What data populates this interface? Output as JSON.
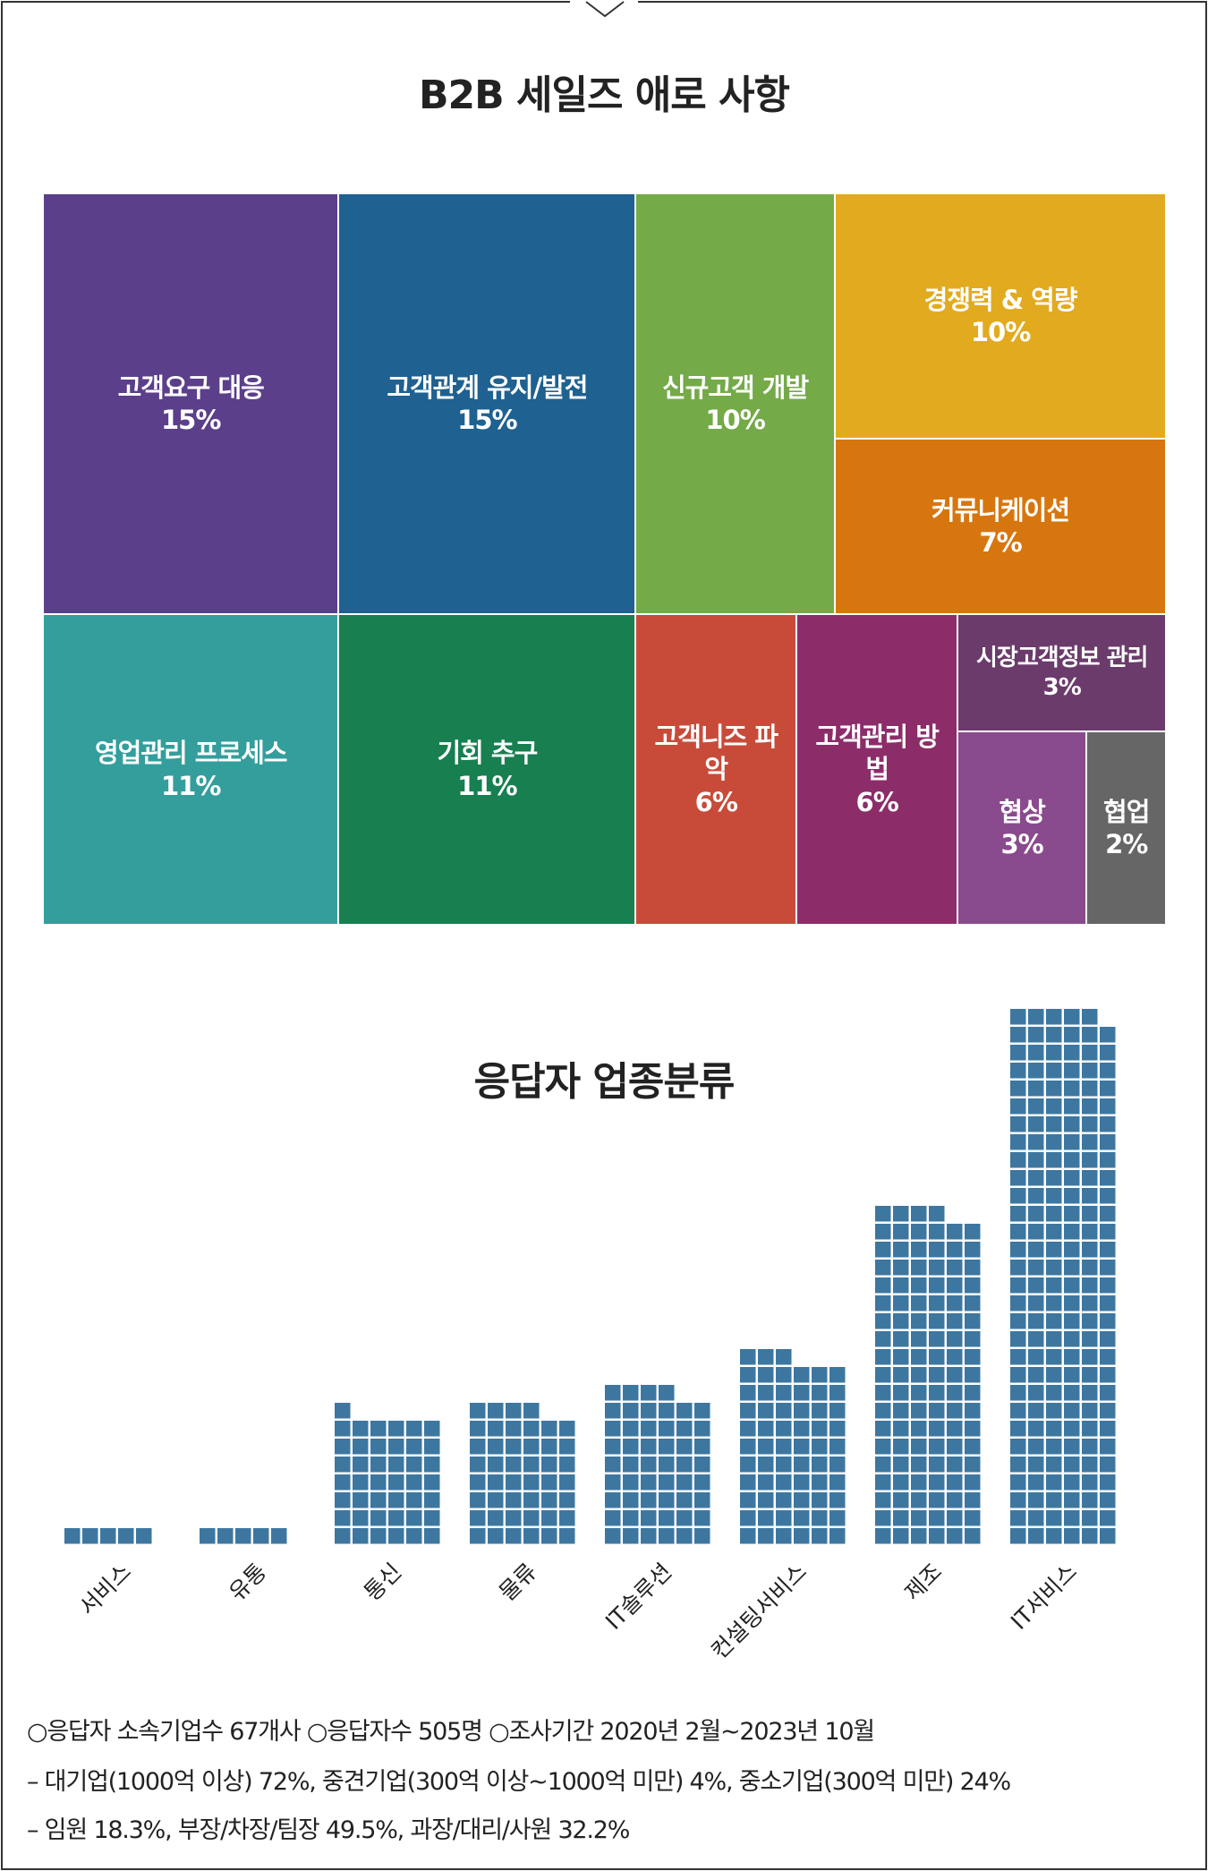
{
  "chart_data": [
    {
      "type": "treemap",
      "title": "B2B 세일즈 애로 사항",
      "categories": [
        "고객요구 대응",
        "고객관계 유지/발전",
        "신규고객 개발",
        "경쟁력 & 역량",
        "커뮤니케이션",
        "영업관리 프로세스",
        "기회 추구",
        "고객니즈 파악",
        "고객관리 방법",
        "시장고객정보 관리",
        "협상",
        "협업"
      ],
      "values": [
        15,
        15,
        10,
        10,
        7,
        11,
        11,
        6,
        6,
        3,
        3,
        2
      ],
      "value_labels": [
        "15%",
        "15%",
        "10%",
        "10%",
        "7%",
        "11%",
        "11%",
        "6%",
        "6%",
        "3%",
        "3%",
        "2%"
      ],
      "colors": [
        "#5b3f8a",
        "#1f6190",
        "#74aa48",
        "#e2aa1f",
        "#d7760f",
        "#339e9c",
        "#177f50",
        "#c84b3a",
        "#8c2d6a",
        "#6b3b6c",
        "#8a4a8e",
        "#666666"
      ]
    },
    {
      "type": "waffle",
      "title": "응답자 업종분류",
      "categories": [
        "서비스",
        "유통",
        "통신",
        "물류",
        "IT솔루션",
        "컨설팅서비스",
        "제조",
        "IT서비스"
      ],
      "values": [
        5,
        5,
        43,
        46,
        52,
        63,
        112,
        179
      ],
      "color": "#3d77a0"
    }
  ],
  "notes": [
    "○응답자 소속기업수 67개사  ○응답자수 505명  ○조사기간 2020년 2월~2023년 10월",
    "– 대기업(1000억 이상) 72%, 중견기업(300억 이상~1000억 미만) 4%, 중소기업(300억 미만) 24%",
    "– 임원 18.3%, 부장/차장/팀장 49.5%, 과장/대리/사원 32.2%"
  ]
}
